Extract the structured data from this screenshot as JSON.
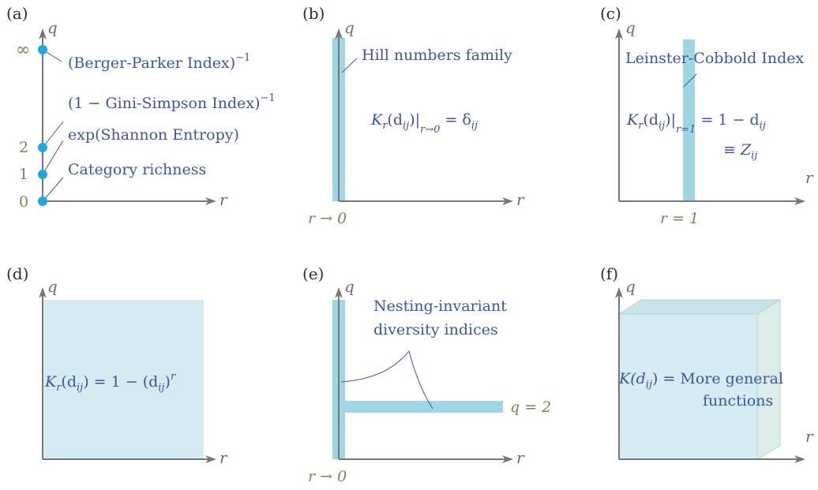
{
  "colors": {
    "axis": "#777777",
    "band": "#9fd6e3",
    "region": "#d6ebf1",
    "point": "#1aa9e0",
    "text_blue": "#3a56a6",
    "text_green": "#6e8c5a"
  },
  "axis_labels": {
    "q": "q",
    "r": "r"
  },
  "panels": {
    "a": {
      "label": "(a)",
      "ticks": {
        "inf": "∞",
        "two": "2",
        "one": "1",
        "zero": "0"
      },
      "items": {
        "bp": "(Berger-Parker Index)",
        "bp_exp": "−1",
        "gs": "(1 − Gini-Simpson Index)",
        "gs_exp": "−1",
        "sh": "exp(Shannon Entropy)",
        "cr": "Category richness"
      }
    },
    "b": {
      "label": "(b)",
      "annotation": "Hill numbers family",
      "formula": {
        "lhs": "K",
        "sub": "r",
        "arg": "(d",
        "argsub": "ij",
        "close": ")|",
        "limit": "r→0",
        "rhs": " = δ",
        "rhssub": "ij"
      },
      "xnote": "r → 0"
    },
    "c": {
      "label": "(c)",
      "annotation": "Leinster-Cobbold Index",
      "formula": {
        "lhs": "K",
        "sub": "r",
        "arg": "(d",
        "argsub": "ij",
        "close": ")|",
        "limit": "r=1",
        "rhs": " = 1 − d",
        "rhssub": "ij"
      },
      "equiv": {
        "main": "≡ Z",
        "sub": "ij"
      },
      "xnote": "r = 1"
    },
    "d": {
      "label": "(d)",
      "formula": {
        "lhs": "K",
        "sub": "r",
        "arg": "(d",
        "argsub": "ij",
        "mid": ") = 1 − (d",
        "midsub": "ij",
        "end": ")",
        "exp": "r"
      }
    },
    "e": {
      "label": "(e)",
      "annotation_line1": "Nesting-invariant",
      "annotation_line2": "diversity indices",
      "qnote": "q = 2",
      "xnote": "r → 0"
    },
    "f": {
      "label": "(f)",
      "formula": {
        "lhs": "K(d",
        "sub": "ij",
        "rhs": ") = More general"
      },
      "line2": "functions"
    }
  }
}
